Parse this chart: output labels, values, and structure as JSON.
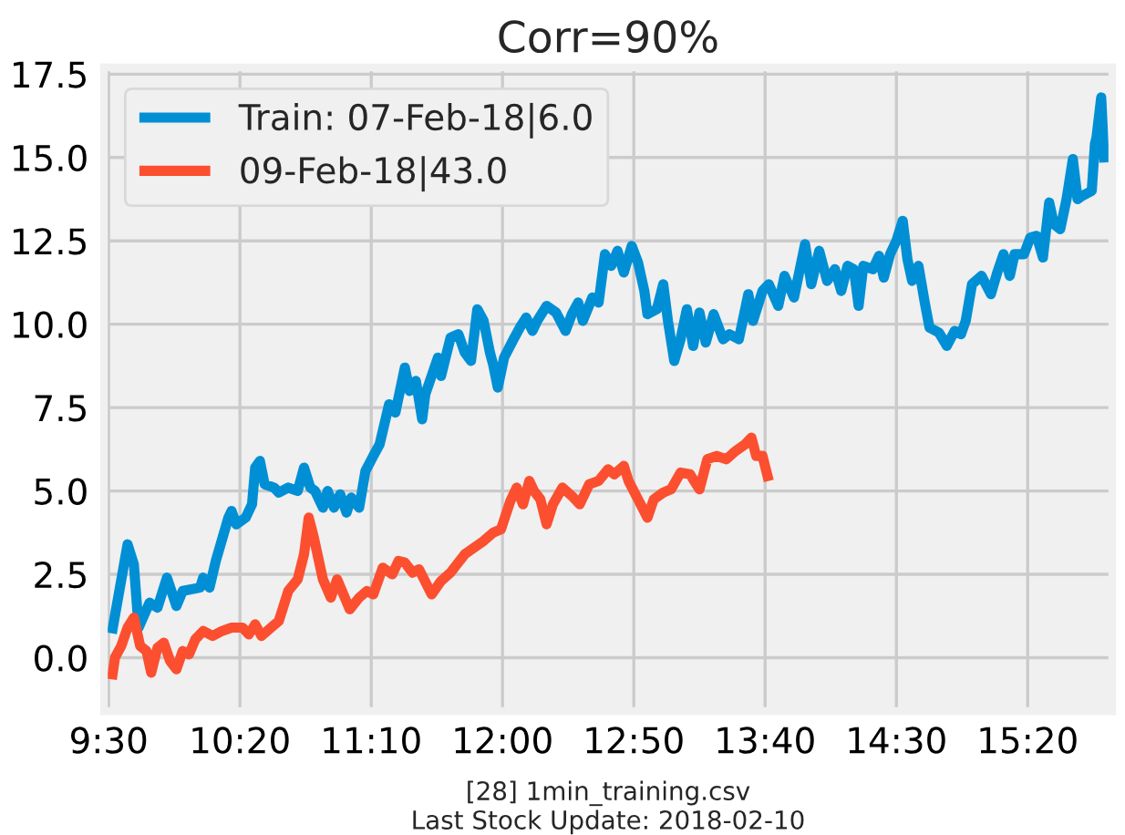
{
  "chart_data": {
    "type": "line",
    "title": "Corr=90%",
    "xlabel": "[28] 1min_training.csv\nLast Stock Update: 2018-02-10",
    "xlim": [
      9.47,
      15.87
    ],
    "xticks": [
      {
        "value": 9.5,
        "label": "9:30"
      },
      {
        "value": 10.3333,
        "label": "10:20"
      },
      {
        "value": 11.1667,
        "label": "11:10"
      },
      {
        "value": 12,
        "label": "12:00"
      },
      {
        "value": 12.8333,
        "label": "12:50"
      },
      {
        "value": 13.6667,
        "label": "13:40"
      },
      {
        "value": 14.5,
        "label": "14:30"
      },
      {
        "value": 15.3333,
        "label": "15:20"
      }
    ],
    "ylim": [
      -1.6,
      17.7
    ],
    "yticks": [
      {
        "value": 0,
        "label": "0.0"
      },
      2.5,
      {
        "value": 5,
        "label": "5.0"
      },
      7.5,
      {
        "value": 10,
        "label": "10.0"
      },
      12.5,
      {
        "value": 15,
        "label": "15.0"
      },
      17.5
    ],
    "grid": true,
    "legend": "top left",
    "series": [
      {
        "name": "Train: 07-Feb-18|6.0",
        "color": "#008fd5",
        "x": [
          9.52,
          9.62,
          9.66,
          9.69,
          9.76,
          9.81,
          9.87,
          9.93,
          9.97,
          10.08,
          10.1,
          10.14,
          10.18,
          10.26,
          10.28,
          10.31,
          10.37,
          10.41,
          10.43,
          10.46,
          10.49,
          10.55,
          10.58,
          10.64,
          10.7,
          10.74,
          10.78,
          10.81,
          10.86,
          10.89,
          10.93,
          10.97,
          11.01,
          11.04,
          11.09,
          11.13,
          11.18,
          11.22,
          11.28,
          11.32,
          11.38,
          11.41,
          11.45,
          11.49,
          11.51,
          11.59,
          11.61,
          11.67,
          11.72,
          11.76,
          11.8,
          11.84,
          11.88,
          11.92,
          11.94,
          11.97,
          12.01,
          12.07,
          12.11,
          12.15,
          12.19,
          12.22,
          12.28,
          12.34,
          12.4,
          12.44,
          12.48,
          12.51,
          12.57,
          12.61,
          12.65,
          12.69,
          12.73,
          12.77,
          12.82,
          12.86,
          12.9,
          12.92,
          12.98,
          13.02,
          13.05,
          13.09,
          13.13,
          13.17,
          13.21,
          13.25,
          13.29,
          13.34,
          13.4,
          13.44,
          13.5,
          13.56,
          13.59,
          13.65,
          13.69,
          13.75,
          13.79,
          13.85,
          13.92,
          13.96,
          14.01,
          14.06,
          14.11,
          14.15,
          14.19,
          14.23,
          14.26,
          14.29,
          14.35,
          14.39,
          14.42,
          14.46,
          14.5,
          14.54,
          14.57,
          14.6,
          14.64,
          14.68,
          14.71,
          14.77,
          14.82,
          14.87,
          14.91,
          14.94,
          14.98,
          15.04,
          15.1,
          15.14,
          15.18,
          15.22,
          15.25,
          15.31,
          15.35,
          15.39,
          15.43,
          15.47,
          15.5,
          15.54,
          15.58,
          15.62,
          15.65,
          15.68,
          15.74,
          15.76,
          15.77,
          15.8,
          15.82
        ],
        "values": [
          0.73,
          3.4,
          2.8,
          0.9,
          1.65,
          1.5,
          2.4,
          1.55,
          2.0,
          2.1,
          2.4,
          2.1,
          2.9,
          4.2,
          4.4,
          4.0,
          4.2,
          4.6,
          5.7,
          5.9,
          5.2,
          5.1,
          4.95,
          5.1,
          5.0,
          5.7,
          5.1,
          5.0,
          4.5,
          5.0,
          4.5,
          4.9,
          4.35,
          4.8,
          4.5,
          5.6,
          6.05,
          6.4,
          7.6,
          7.35,
          8.7,
          8.0,
          8.3,
          7.15,
          7.9,
          9.0,
          8.45,
          9.6,
          9.7,
          9.15,
          8.9,
          10.45,
          10.1,
          9.15,
          8.8,
          8.1,
          9.0,
          9.55,
          9.9,
          10.2,
          9.8,
          10.1,
          10.55,
          10.35,
          9.8,
          10.3,
          10.65,
          10.1,
          10.8,
          10.65,
          12.1,
          11.75,
          12.2,
          11.55,
          12.35,
          11.85,
          11.0,
          10.3,
          10.45,
          11.2,
          10.1,
          8.9,
          9.55,
          10.45,
          9.35,
          10.35,
          9.45,
          10.3,
          9.55,
          9.7,
          9.55,
          10.9,
          10.1,
          11.0,
          11.2,
          10.55,
          11.45,
          10.8,
          12.4,
          11.2,
          12.2,
          11.3,
          11.65,
          11.0,
          11.75,
          11.65,
          10.55,
          11.75,
          11.65,
          12.05,
          11.4,
          12.1,
          12.5,
          13.1,
          11.95,
          11.3,
          11.75,
          10.65,
          9.9,
          9.75,
          9.35,
          9.8,
          9.7,
          10.1,
          11.2,
          11.45,
          10.9,
          11.55,
          12.1,
          11.45,
          12.1,
          12.1,
          12.6,
          12.65,
          12.0,
          13.65,
          13.0,
          12.85,
          13.75,
          14.95,
          13.75,
          13.85,
          14.0,
          15.4,
          15.6,
          16.8,
          14.85
        ]
      },
      {
        "name": "09-Feb-18|43.0",
        "color": "#fc4f30",
        "x": [
          9.52,
          9.54,
          9.58,
          9.62,
          9.66,
          9.7,
          9.74,
          9.77,
          9.81,
          9.85,
          9.89,
          9.93,
          9.97,
          10.01,
          10.05,
          10.1,
          10.16,
          10.22,
          10.28,
          10.35,
          10.39,
          10.43,
          10.47,
          10.53,
          10.58,
          10.64,
          10.7,
          10.74,
          10.77,
          10.8,
          10.86,
          10.91,
          10.95,
          11.03,
          11.09,
          11.14,
          11.18,
          11.24,
          11.3,
          11.34,
          11.38,
          11.43,
          11.47,
          11.55,
          11.61,
          11.67,
          11.76,
          11.82,
          11.88,
          11.94,
          11.99,
          12.05,
          12.09,
          12.13,
          12.17,
          12.2,
          12.24,
          12.28,
          12.32,
          12.38,
          12.44,
          12.49,
          12.55,
          12.61,
          12.67,
          12.71,
          12.77,
          12.8,
          12.86,
          12.92,
          12.96,
          13.02,
          13.07,
          13.13,
          13.19,
          13.25,
          13.3,
          13.36,
          13.42,
          13.48,
          13.54,
          13.58,
          13.61,
          13.65,
          13.69
        ],
        "values": [
          -0.65,
          0.0,
          0.35,
          0.9,
          1.2,
          0.35,
          0.2,
          -0.45,
          0.3,
          0.45,
          -0.1,
          -0.35,
          0.2,
          0.1,
          0.55,
          0.8,
          0.65,
          0.8,
          0.9,
          0.9,
          0.7,
          1.0,
          0.65,
          0.9,
          1.1,
          2.0,
          2.35,
          3.1,
          4.2,
          3.65,
          2.35,
          1.8,
          2.35,
          1.45,
          1.8,
          2.0,
          1.9,
          2.7,
          2.5,
          2.9,
          2.85,
          2.55,
          2.65,
          1.9,
          2.3,
          2.55,
          3.1,
          3.3,
          3.5,
          3.75,
          3.85,
          4.7,
          5.1,
          4.6,
          5.3,
          5.0,
          4.75,
          4.0,
          4.6,
          5.1,
          4.85,
          4.6,
          5.2,
          5.3,
          5.65,
          5.5,
          5.75,
          5.3,
          4.75,
          4.2,
          4.75,
          4.95,
          5.05,
          5.55,
          5.5,
          5.05,
          5.95,
          6.05,
          5.95,
          6.2,
          6.4,
          6.6,
          6.05,
          6.05,
          5.3
        ]
      }
    ]
  }
}
